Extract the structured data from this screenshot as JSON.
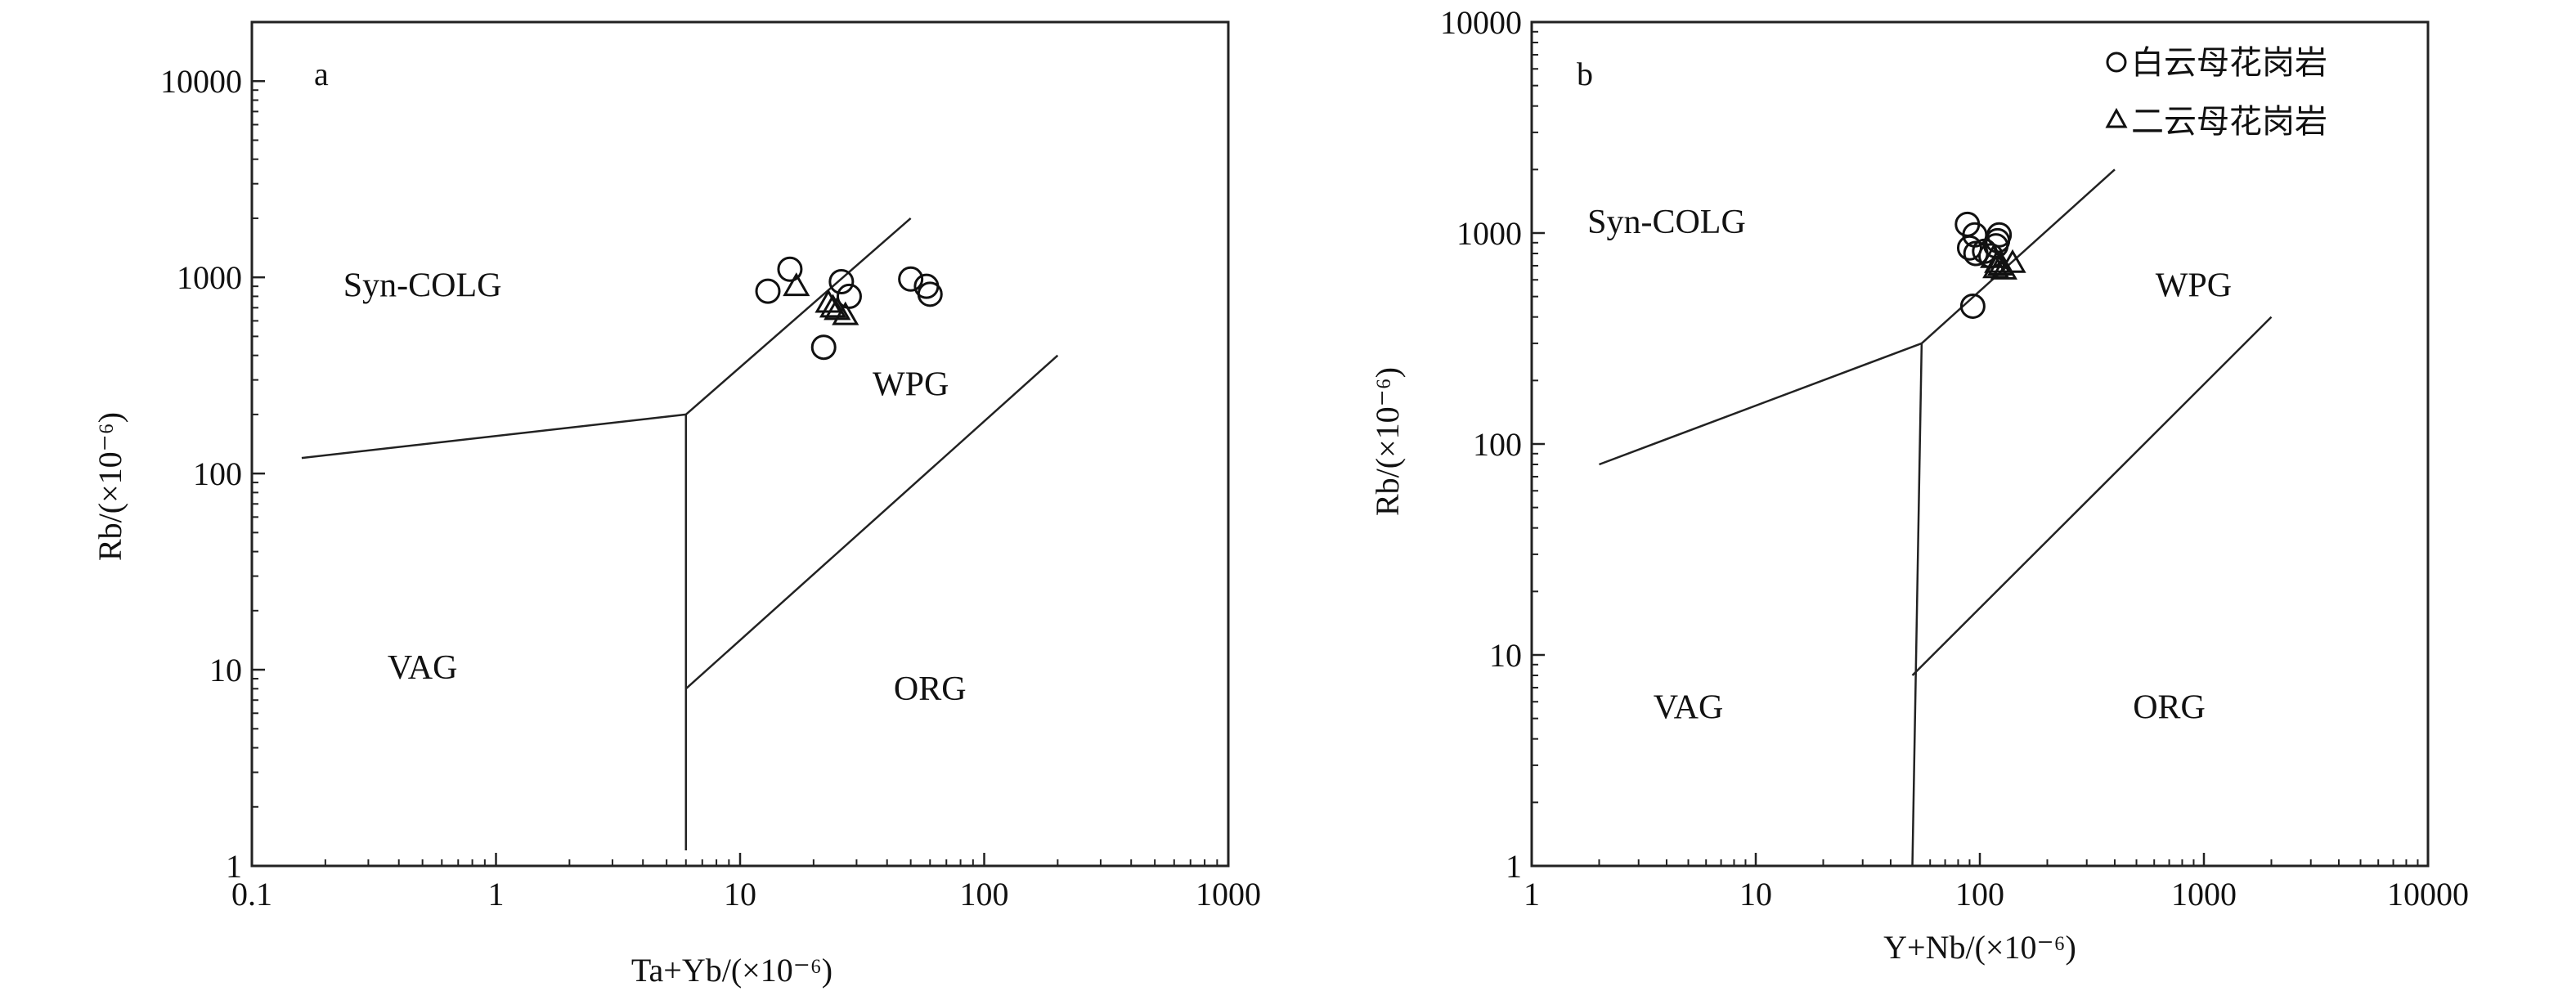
{
  "chart_data": [
    {
      "type": "scatter",
      "panel_label": "a",
      "xlabel": "Ta+Yb/(×10⁻⁶)",
      "ylabel": "Rb/(×10⁻⁶)",
      "x_scale": "log",
      "y_scale": "log",
      "xlim": [
        0.1,
        1000
      ],
      "ylim": [
        1,
        20000
      ],
      "x_ticks": [
        {
          "value": 0.1,
          "label": "0.1"
        },
        {
          "value": 1,
          "label": "1"
        },
        {
          "value": 10,
          "label": "10"
        },
        {
          "value": 100,
          "label": "100"
        },
        {
          "value": 1000,
          "label": "1000"
        }
      ],
      "y_ticks": [
        {
          "value": 1,
          "label": "1"
        },
        {
          "value": 10,
          "label": "10"
        },
        {
          "value": 100,
          "label": "100"
        },
        {
          "value": 1000,
          "label": "1000"
        },
        {
          "value": 10000,
          "label": "10000"
        }
      ],
      "grid": false,
      "boundaries": [
        [
          [
            0.16,
            120
          ],
          [
            6,
            200
          ]
        ],
        [
          [
            6,
            200
          ],
          [
            6,
            1.2
          ]
        ],
        [
          [
            6,
            200
          ],
          [
            50,
            2000
          ]
        ],
        [
          [
            6,
            8
          ],
          [
            200,
            400
          ]
        ]
      ],
      "fields": [
        {
          "label": "Syn-COLG",
          "x": 0.5,
          "y": 800
        },
        {
          "label": "WPG",
          "x": 50,
          "y": 250
        },
        {
          "label": "VAG",
          "x": 0.5,
          "y": 9
        },
        {
          "label": "ORG",
          "x": 60,
          "y": 7
        }
      ],
      "series": [
        {
          "marker": "circle",
          "points": [
            [
              13,
              850
            ],
            [
              16,
              1100
            ],
            [
              26,
              950
            ],
            [
              28,
              800
            ],
            [
              22,
              440
            ],
            [
              50,
              980
            ],
            [
              58,
              900
            ],
            [
              60,
              820
            ]
          ]
        },
        {
          "marker": "triangle",
          "points": [
            [
              17,
              900
            ],
            [
              23,
              740
            ],
            [
              24,
              700
            ],
            [
              25,
              680
            ],
            [
              27,
              640
            ]
          ]
        }
      ]
    },
    {
      "type": "scatter",
      "panel_label": "b",
      "xlabel": "Y+Nb/(×10⁻⁶)",
      "ylabel": "Rb/(×10⁻⁶)",
      "x_scale": "log",
      "y_scale": "log",
      "xlim": [
        1,
        10000
      ],
      "ylim": [
        1,
        10000
      ],
      "x_ticks": [
        {
          "value": 1,
          "label": "1"
        },
        {
          "value": 10,
          "label": "10"
        },
        {
          "value": 100,
          "label": "100"
        },
        {
          "value": 1000,
          "label": "1000"
        },
        {
          "value": 10000,
          "label": "10000"
        }
      ],
      "y_ticks": [
        {
          "value": 1,
          "label": "1"
        },
        {
          "value": 10,
          "label": "10"
        },
        {
          "value": 100,
          "label": "100"
        },
        {
          "value": 1000,
          "label": "1000"
        },
        {
          "value": 10000,
          "label": "10000"
        }
      ],
      "grid": false,
      "legend_position": "top-right",
      "boundaries": [
        [
          [
            2,
            80
          ],
          [
            55,
            300
          ]
        ],
        [
          [
            55,
            300
          ],
          [
            50,
            1
          ]
        ],
        [
          [
            55,
            300
          ],
          [
            400,
            2000
          ]
        ],
        [
          [
            50,
            8
          ],
          [
            2000,
            400
          ]
        ]
      ],
      "fields": [
        {
          "label": "Syn-COLG",
          "x": 4,
          "y": 1000
        },
        {
          "label": "WPG",
          "x": 900,
          "y": 500
        },
        {
          "label": "VAG",
          "x": 5,
          "y": 5
        },
        {
          "label": "ORG",
          "x": 700,
          "y": 5
        }
      ],
      "series": [
        {
          "name": "白云母花岗岩",
          "marker": "circle",
          "points": [
            [
              88,
              1100
            ],
            [
              95,
              980
            ],
            [
              90,
              850
            ],
            [
              96,
              800
            ],
            [
              105,
              820
            ],
            [
              112,
              780
            ],
            [
              120,
              920
            ],
            [
              122,
              980
            ],
            [
              118,
              870
            ],
            [
              93,
              450
            ]
          ]
        },
        {
          "name": "二云母花岗岩",
          "marker": "triangle",
          "points": [
            [
              115,
              760
            ],
            [
              120,
              720
            ],
            [
              124,
              700
            ],
            [
              128,
              670
            ],
            [
              140,
              720
            ],
            [
              118,
              680
            ]
          ]
        }
      ]
    }
  ]
}
